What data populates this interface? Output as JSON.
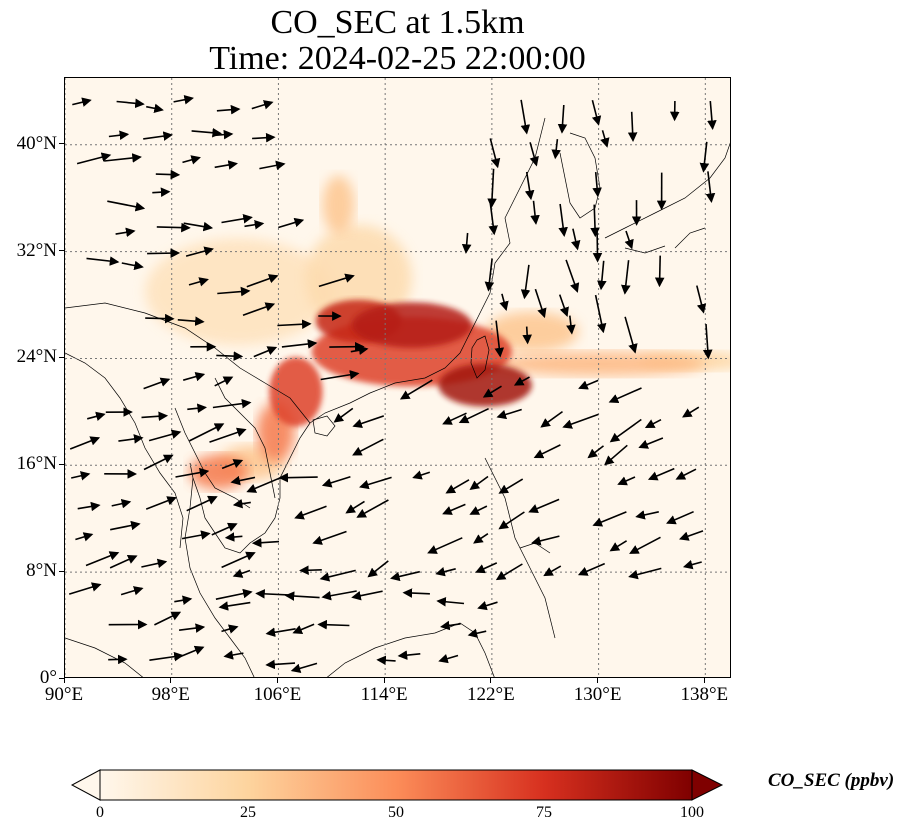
{
  "title": {
    "line1": "CO_SEC at 1.5km",
    "line2": "Time: 2024-02-25 22:00:00"
  },
  "map": {
    "lon_range": [
      90,
      140
    ],
    "lat_range": [
      0,
      45
    ],
    "lon_ticks": [
      90,
      98,
      106,
      114,
      122,
      130,
      138
    ],
    "lon_tick_labels": [
      "90°E",
      "98°E",
      "106°E",
      "114°E",
      "122°E",
      "130°E",
      "138°E"
    ],
    "lat_ticks": [
      0,
      8,
      16,
      24,
      32,
      40
    ],
    "lat_tick_labels": [
      "0°",
      "8°N",
      "16°N",
      "24°N",
      "32°N",
      "40°N"
    ],
    "gridlines": true,
    "background_color": "#fff7ec",
    "coastline_color": "#000000",
    "vector_color": "#000000"
  },
  "colorbar": {
    "label": "CO_SEC (ppbv)",
    "min": 0,
    "max": 100,
    "ticks": [
      "0",
      "25",
      "50",
      "75",
      "100"
    ],
    "colormap": [
      "#fff7ec",
      "#fdd49e",
      "#fc8d59",
      "#d7301f",
      "#7f0000"
    ],
    "extend": "both"
  },
  "plumes": [
    {
      "name": "south-china-taiwan-band",
      "center": [
        116,
        24.5
      ],
      "radius": [
        7.5,
        2.6
      ],
      "value": 70
    },
    {
      "name": "taiwan-east-core",
      "center": [
        121.5,
        22
      ],
      "radius": [
        3.5,
        1.6
      ],
      "value": 90
    },
    {
      "name": "fujian-zhejiang-core",
      "center": [
        116,
        26.5
      ],
      "radius": [
        4.5,
        1.7
      ],
      "value": 85
    },
    {
      "name": "jiangxi-hunan-core",
      "center": [
        112,
        26.8
      ],
      "radius": [
        3.2,
        1.6
      ],
      "value": 80
    },
    {
      "name": "gulf-of-tonkin",
      "center": [
        107.3,
        21.5
      ],
      "radius": [
        2,
        2.6
      ],
      "value": 70
    },
    {
      "name": "north-vietnam",
      "center": [
        105.8,
        18.5
      ],
      "radius": [
        1.4,
        2.2
      ],
      "value": 55
    },
    {
      "name": "pacific-outflow",
      "center": [
        130,
        23.6
      ],
      "radius": [
        8,
        0.9
      ],
      "value": 35
    },
    {
      "name": "far-pacific-outflow",
      "center": [
        137,
        23.8
      ],
      "radius": [
        4,
        0.7
      ],
      "value": 25
    },
    {
      "name": "thailand-laos",
      "center": [
        101.5,
        15.5
      ],
      "radius": [
        2.2,
        1.3
      ],
      "value": 55
    },
    {
      "name": "laos-cambodia",
      "center": [
        104,
        16.2
      ],
      "radius": [
        2.5,
        1.3
      ],
      "value": 30
    },
    {
      "name": "sichuan-yunnan",
      "center": [
        103,
        29
      ],
      "radius": [
        7,
        4
      ],
      "value": 15
    },
    {
      "name": "north-china",
      "center": [
        110.5,
        35.5
      ],
      "radius": [
        1.2,
        2.2
      ],
      "value": 30
    },
    {
      "name": "inland-china-haze",
      "center": [
        112,
        30
      ],
      "radius": [
        4,
        4
      ],
      "value": 20
    },
    {
      "name": "east-china-sea",
      "center": [
        125,
        26
      ],
      "radius": [
        3.5,
        1.5
      ],
      "value": 30
    }
  ],
  "wind_regions": [
    {
      "name": "tibet-westerly",
      "lon": [
        90,
        106
      ],
      "lat": [
        30,
        45
      ],
      "u": 1.0,
      "v": 0.05
    },
    {
      "name": "south-china-westerly",
      "lon": [
        96,
        112
      ],
      "lat": [
        22,
        30
      ],
      "u": 1.0,
      "v": 0.15
    },
    {
      "name": "japan-northerly",
      "lon": [
        120,
        140
      ],
      "lat": [
        26,
        45
      ],
      "u": 0.1,
      "v": -1.0
    },
    {
      "name": "northeast-monsoon",
      "lon": [
        110,
        140
      ],
      "lat": [
        8,
        24
      ],
      "u": -0.8,
      "v": -0.4
    },
    {
      "name": "bay-of-bengal-westerly",
      "lon": [
        90,
        102
      ],
      "lat": [
        0,
        22
      ],
      "u": 0.9,
      "v": 0.2
    },
    {
      "name": "south-china-sea-easterly",
      "lon": [
        98,
        124
      ],
      "lat": [
        0,
        16
      ],
      "u": -1.0,
      "v": -0.15
    }
  ]
}
